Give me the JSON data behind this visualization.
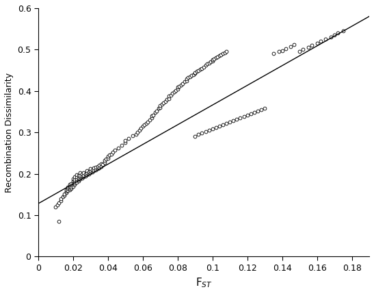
{
  "title": "",
  "xlabel": "F$_{ST}$",
  "ylabel": "Recombination Dissimilarity",
  "xlim": [
    0,
    0.19
  ],
  "ylim": [
    0,
    0.6
  ],
  "xticks": [
    0,
    0.02,
    0.04,
    0.06,
    0.08,
    0.1,
    0.12,
    0.14,
    0.16,
    0.18
  ],
  "yticks": [
    0,
    0.1,
    0.2,
    0.3,
    0.4,
    0.5,
    0.6
  ],
  "line_intercept": 0.128,
  "line_slope": 2.38,
  "marker_size": 12,
  "marker_color": "white",
  "marker_edge_color": "black",
  "marker_edge_width": 0.6,
  "line_color": "black",
  "line_width": 1.0,
  "scatter_x": [
    0.01,
    0.011,
    0.012,
    0.013,
    0.013,
    0.014,
    0.015,
    0.015,
    0.016,
    0.016,
    0.016,
    0.017,
    0.017,
    0.017,
    0.018,
    0.018,
    0.018,
    0.018,
    0.019,
    0.019,
    0.019,
    0.019,
    0.02,
    0.02,
    0.02,
    0.02,
    0.02,
    0.021,
    0.021,
    0.021,
    0.021,
    0.021,
    0.022,
    0.022,
    0.022,
    0.022,
    0.022,
    0.023,
    0.023,
    0.023,
    0.023,
    0.024,
    0.024,
    0.024,
    0.024,
    0.025,
    0.025,
    0.025,
    0.026,
    0.026,
    0.026,
    0.027,
    0.027,
    0.028,
    0.028,
    0.028,
    0.029,
    0.029,
    0.03,
    0.03,
    0.03,
    0.031,
    0.031,
    0.032,
    0.032,
    0.033,
    0.033,
    0.034,
    0.034,
    0.035,
    0.035,
    0.036,
    0.036,
    0.037,
    0.038,
    0.038,
    0.039,
    0.04,
    0.04,
    0.041,
    0.042,
    0.043,
    0.044,
    0.046,
    0.048,
    0.05,
    0.05,
    0.052,
    0.054,
    0.056,
    0.057,
    0.058,
    0.059,
    0.06,
    0.061,
    0.062,
    0.063,
    0.064,
    0.065,
    0.065,
    0.066,
    0.067,
    0.068,
    0.069,
    0.07,
    0.07,
    0.071,
    0.072,
    0.073,
    0.074,
    0.075,
    0.075,
    0.076,
    0.077,
    0.078,
    0.079,
    0.08,
    0.08,
    0.081,
    0.082,
    0.083,
    0.084,
    0.085,
    0.085,
    0.086,
    0.087,
    0.088,
    0.089,
    0.09,
    0.09,
    0.091,
    0.092,
    0.093,
    0.094,
    0.095,
    0.096,
    0.097,
    0.098,
    0.099,
    0.1,
    0.1,
    0.101,
    0.102,
    0.103,
    0.104,
    0.105,
    0.106,
    0.107,
    0.108,
    0.09,
    0.092,
    0.094,
    0.096,
    0.098,
    0.1,
    0.102,
    0.104,
    0.106,
    0.108,
    0.11,
    0.112,
    0.114,
    0.116,
    0.118,
    0.12,
    0.122,
    0.124,
    0.126,
    0.128,
    0.13,
    0.135,
    0.138,
    0.14,
    0.142,
    0.145,
    0.147,
    0.15,
    0.152,
    0.155,
    0.157,
    0.16,
    0.162,
    0.165,
    0.168,
    0.17,
    0.172,
    0.175,
    0.012
  ],
  "scatter_y": [
    0.12,
    0.125,
    0.13,
    0.135,
    0.14,
    0.145,
    0.148,
    0.152,
    0.155,
    0.158,
    0.162,
    0.16,
    0.165,
    0.168,
    0.162,
    0.165,
    0.17,
    0.175,
    0.165,
    0.168,
    0.172,
    0.176,
    0.17,
    0.174,
    0.178,
    0.183,
    0.188,
    0.175,
    0.178,
    0.182,
    0.186,
    0.192,
    0.18,
    0.184,
    0.188,
    0.193,
    0.198,
    0.182,
    0.186,
    0.19,
    0.196,
    0.188,
    0.192,
    0.196,
    0.202,
    0.19,
    0.195,
    0.2,
    0.192,
    0.196,
    0.202,
    0.195,
    0.2,
    0.197,
    0.202,
    0.208,
    0.2,
    0.205,
    0.202,
    0.207,
    0.212,
    0.205,
    0.21,
    0.208,
    0.214,
    0.21,
    0.216,
    0.212,
    0.218,
    0.215,
    0.22,
    0.218,
    0.224,
    0.222,
    0.228,
    0.232,
    0.235,
    0.238,
    0.242,
    0.245,
    0.248,
    0.252,
    0.258,
    0.262,
    0.268,
    0.275,
    0.28,
    0.285,
    0.292,
    0.295,
    0.3,
    0.305,
    0.31,
    0.315,
    0.318,
    0.322,
    0.325,
    0.33,
    0.335,
    0.34,
    0.342,
    0.348,
    0.352,
    0.358,
    0.36,
    0.365,
    0.368,
    0.372,
    0.375,
    0.38,
    0.382,
    0.388,
    0.39,
    0.395,
    0.398,
    0.402,
    0.405,
    0.41,
    0.412,
    0.415,
    0.418,
    0.422,
    0.425,
    0.43,
    0.432,
    0.435,
    0.438,
    0.44,
    0.442,
    0.445,
    0.448,
    0.45,
    0.452,
    0.455,
    0.458,
    0.462,
    0.465,
    0.468,
    0.47,
    0.472,
    0.475,
    0.478,
    0.48,
    0.482,
    0.485,
    0.488,
    0.49,
    0.492,
    0.495,
    0.29,
    0.295,
    0.298,
    0.302,
    0.305,
    0.308,
    0.312,
    0.315,
    0.318,
    0.322,
    0.325,
    0.328,
    0.332,
    0.335,
    0.338,
    0.342,
    0.345,
    0.348,
    0.352,
    0.355,
    0.358,
    0.49,
    0.495,
    0.498,
    0.502,
    0.508,
    0.512,
    0.495,
    0.5,
    0.505,
    0.51,
    0.515,
    0.52,
    0.525,
    0.53,
    0.535,
    0.54,
    0.545,
    0.085
  ]
}
